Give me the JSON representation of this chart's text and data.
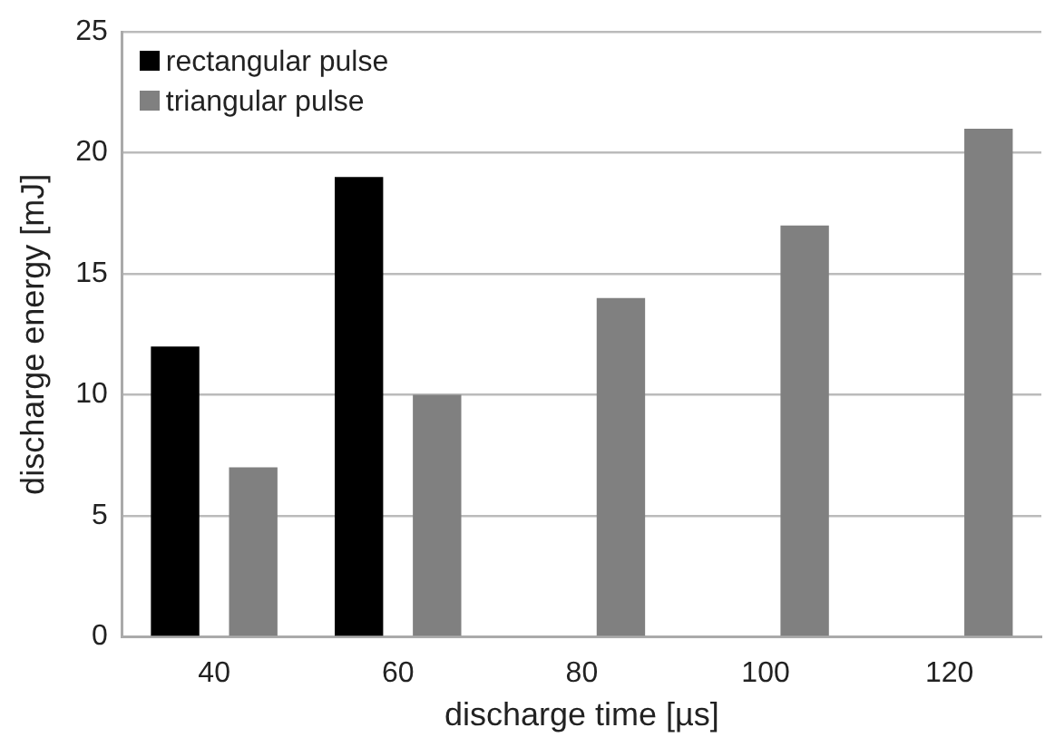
{
  "chart_data": {
    "type": "bar",
    "xlabel": "discharge time [µs]",
    "ylabel": "discharge energy [mJ]",
    "categories": [
      "40",
      "60",
      "80",
      "100",
      "120"
    ],
    "series": [
      {
        "name": "rectangular pulse",
        "color": "#000000",
        "values": [
          12,
          19,
          null,
          null,
          null
        ]
      },
      {
        "name": "triangular pulse",
        "color": "#808080",
        "values": [
          7,
          10,
          14,
          17,
          21
        ]
      }
    ],
    "ylim": [
      0,
      25
    ],
    "yticks": [
      0,
      5,
      10,
      15,
      20,
      25
    ],
    "grid": "y",
    "legend": "top left"
  }
}
